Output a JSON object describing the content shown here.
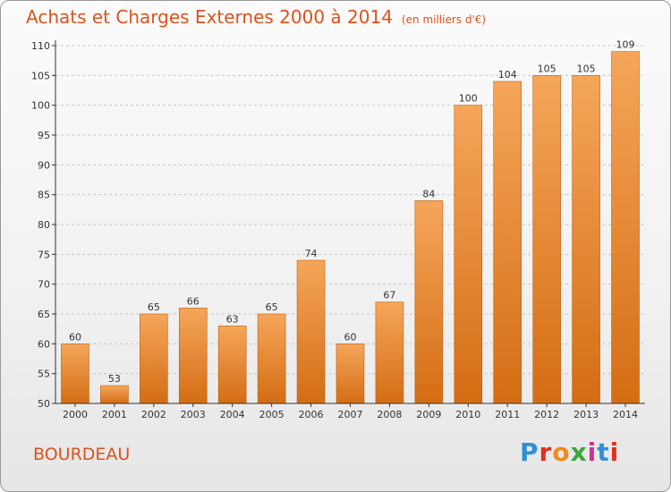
{
  "title": "Achats et Charges Externes 2000 à 2014",
  "unit_label": "(en milliers d'€)",
  "commune": "BOURDEAU",
  "logo": {
    "text": "Proxiti",
    "letter_colors": [
      "#2e8fd6",
      "#e2301f",
      "#f08a1c",
      "#3aa63a",
      "#d0328c",
      "#2e8fd6",
      "#e2301f"
    ]
  },
  "colors": {
    "bar_light": "#f5a65a",
    "bar_dark": "#d46d14",
    "title": "#d9531e",
    "axis": "#333333",
    "grid": "#c8c8c8"
  },
  "chart_data": {
    "type": "bar",
    "title": "Achats et Charges Externes 2000 à 2014",
    "xlabel": "",
    "ylabel": "",
    "categories": [
      "2000",
      "2001",
      "2002",
      "2003",
      "2004",
      "2005",
      "2006",
      "2007",
      "2008",
      "2009",
      "2010",
      "2011",
      "2012",
      "2013",
      "2014"
    ],
    "values": [
      60,
      53,
      65,
      66,
      63,
      65,
      74,
      60,
      67,
      84,
      100,
      104,
      105,
      105,
      109
    ],
    "ylim": [
      50,
      110
    ],
    "yticks": [
      50,
      55,
      60,
      65,
      70,
      75,
      80,
      85,
      90,
      95,
      100,
      105,
      110
    ],
    "grid": true,
    "data_labels": true
  }
}
